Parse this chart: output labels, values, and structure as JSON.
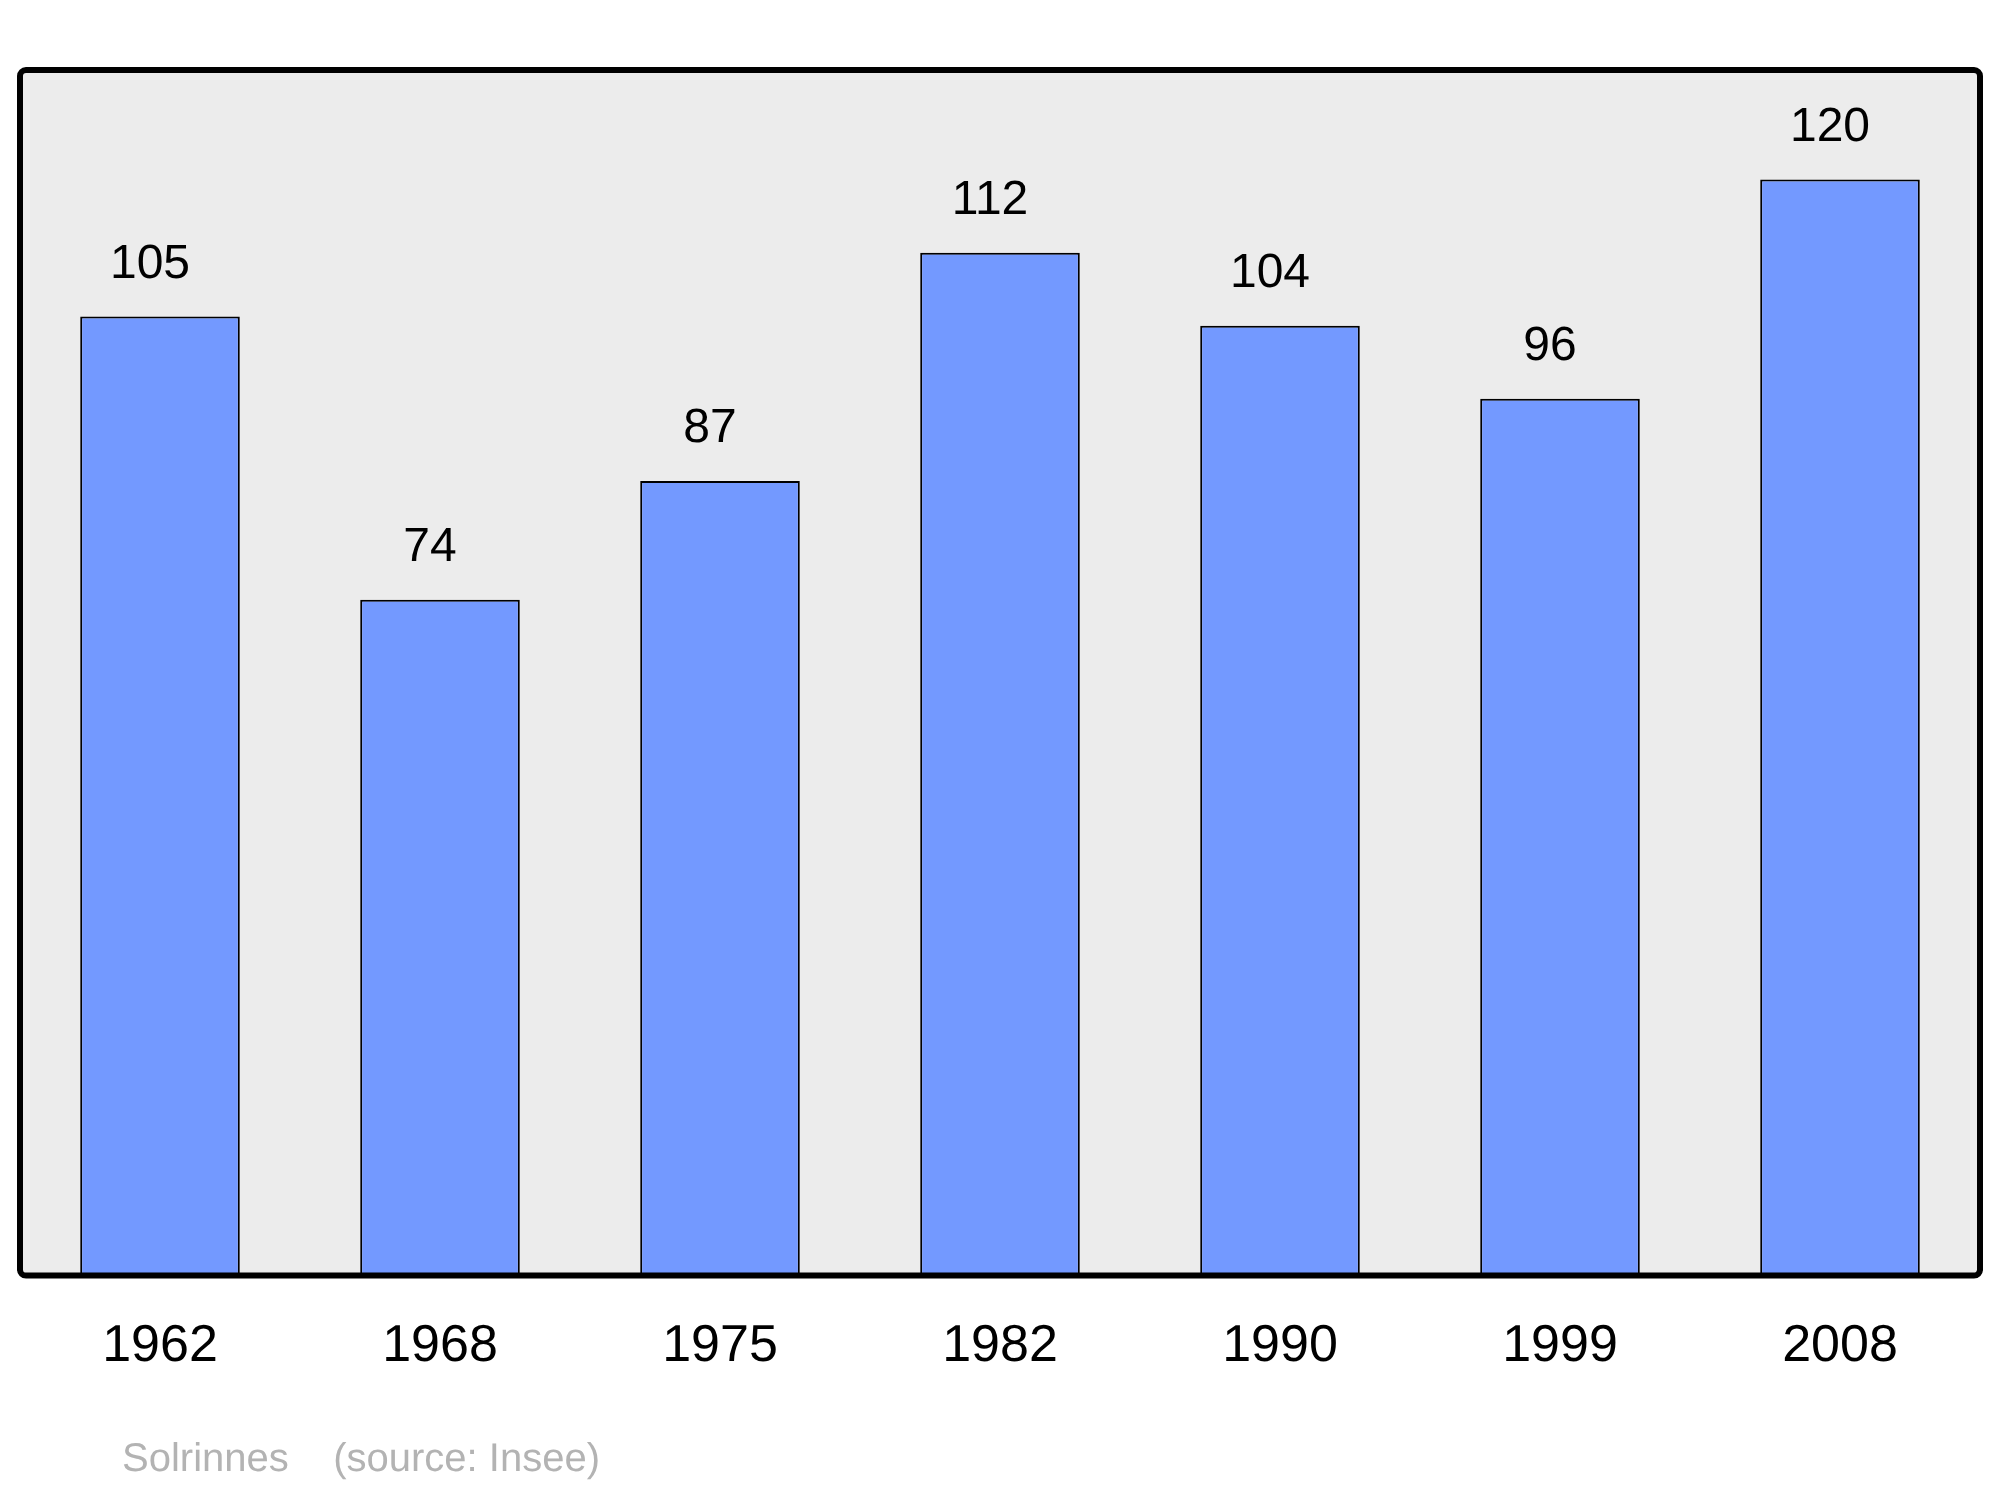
{
  "chart_data": {
    "type": "bar",
    "categories": [
      "1962",
      "1968",
      "1975",
      "1982",
      "1990",
      "1999",
      "2008"
    ],
    "values": [
      105,
      74,
      87,
      112,
      104,
      96,
      120
    ],
    "color": "#7399ff",
    "tick_labels": "x",
    "data_labels": true,
    "grid": false,
    "legend": false,
    "annotations": [
      "Solrinnes    (source: Insee)"
    ]
  }
}
